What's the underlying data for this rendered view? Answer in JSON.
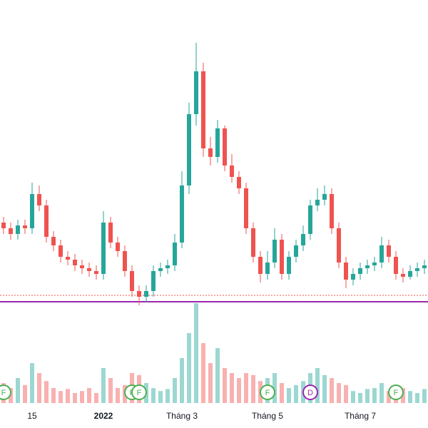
{
  "chart_data": {
    "type": "candlestick",
    "categories": [
      null,
      null,
      null,
      null,
      "15",
      null,
      null,
      null,
      null,
      null,
      null,
      null,
      null,
      null,
      "2022",
      null,
      null,
      null,
      null,
      null,
      null,
      null,
      null,
      null,
      null,
      "Tháng 3",
      null,
      null,
      null,
      null,
      null,
      null,
      null,
      null,
      null,
      null,
      null,
      "Tháng 5",
      null,
      null,
      null,
      null,
      null,
      null,
      null,
      null,
      null,
      null,
      null,
      null,
      "Tháng 7",
      null,
      null,
      null,
      null,
      null,
      null,
      null,
      null,
      null
    ],
    "open": [
      32,
      30,
      28,
      31,
      30,
      42,
      38,
      27,
      24,
      20,
      19,
      17,
      16,
      15,
      14,
      32,
      25,
      22,
      15,
      8,
      6,
      8,
      15,
      16,
      17,
      25,
      45,
      70,
      85,
      58,
      55,
      65,
      52,
      48,
      44,
      30,
      20,
      14,
      18,
      26,
      14,
      20,
      24,
      28,
      38,
      40,
      42,
      30,
      18,
      12,
      14,
      16,
      17,
      18,
      24,
      20,
      14,
      13,
      15,
      16
    ],
    "high": [
      34,
      32,
      33,
      33,
      46,
      45,
      40,
      29,
      26,
      22,
      21,
      19,
      18,
      17,
      36,
      34,
      27,
      24,
      17,
      10,
      10,
      17,
      18,
      19,
      28,
      50,
      74,
      95,
      88,
      62,
      68,
      66,
      56,
      50,
      46,
      32,
      22,
      22,
      30,
      28,
      22,
      26,
      31,
      40,
      44,
      45,
      44,
      32,
      20,
      16,
      18,
      19,
      20,
      27,
      26,
      22,
      16,
      17,
      18,
      19
    ],
    "low": [
      28,
      26,
      26,
      28,
      28,
      36,
      25,
      22,
      18,
      17,
      15,
      14,
      13,
      12,
      12,
      23,
      20,
      13,
      6,
      3,
      4,
      6,
      13,
      14,
      15,
      23,
      42,
      66,
      55,
      52,
      53,
      50,
      46,
      42,
      28,
      18,
      11,
      12,
      16,
      12,
      12,
      18,
      22,
      26,
      36,
      38,
      28,
      16,
      9,
      10,
      12,
      14,
      15,
      16,
      18,
      12,
      11,
      12,
      13,
      14
    ],
    "close": [
      30,
      28,
      31,
      30,
      42,
      38,
      27,
      24,
      20,
      19,
      17,
      16,
      15,
      14,
      32,
      25,
      22,
      15,
      8,
      6,
      8,
      15,
      16,
      17,
      25,
      45,
      70,
      85,
      58,
      55,
      65,
      52,
      48,
      44,
      30,
      20,
      14,
      18,
      26,
      14,
      20,
      24,
      28,
      38,
      40,
      42,
      30,
      18,
      12,
      14,
      16,
      17,
      18,
      24,
      20,
      14,
      13,
      15,
      16,
      17
    ],
    "volume": [
      20,
      15,
      25,
      18,
      40,
      30,
      22,
      15,
      12,
      14,
      10,
      12,
      15,
      10,
      35,
      25,
      15,
      18,
      30,
      28,
      20,
      15,
      12,
      14,
      25,
      45,
      70,
      100,
      60,
      40,
      55,
      35,
      30,
      25,
      30,
      28,
      22,
      25,
      30,
      20,
      15,
      18,
      22,
      30,
      35,
      28,
      25,
      20,
      18,
      12,
      10,
      14,
      15,
      20,
      12,
      10,
      15,
      12,
      10,
      14
    ],
    "events": [
      "F",
      null,
      null,
      null,
      null,
      null,
      null,
      null,
      null,
      null,
      null,
      null,
      null,
      null,
      null,
      null,
      null,
      null,
      "F",
      "F",
      null,
      null,
      null,
      null,
      null,
      null,
      null,
      null,
      null,
      null,
      null,
      null,
      null,
      null,
      null,
      null,
      null,
      "F",
      null,
      null,
      null,
      null,
      null,
      "D",
      null,
      null,
      null,
      null,
      null,
      null,
      null,
      null,
      null,
      null,
      null,
      "F",
      null,
      null,
      null,
      null
    ],
    "event_colors": {
      "F": "#4caf50",
      "D": "#9c27b0"
    },
    "up_color": "#26a69a",
    "down_color": "#ef5350",
    "ylim": [
      0,
      100
    ],
    "volume_lim": [
      0,
      100
    ],
    "levels": [
      {
        "value": 4.25,
        "color": "#9c27b0",
        "style": "solid"
      },
      {
        "value": 6.5,
        "color": "#ef5350",
        "style": "dotted"
      }
    ]
  }
}
